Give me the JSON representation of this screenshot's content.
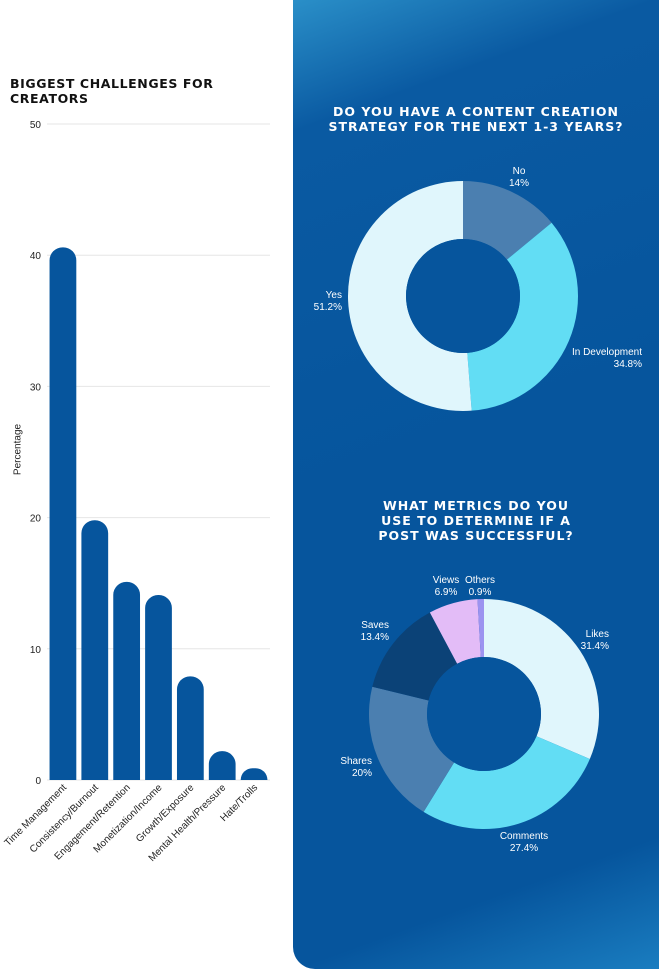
{
  "chart_data": [
    {
      "type": "bar",
      "title": "BIGGEST CHALLENGES FOR CREATORS",
      "xlabel": "",
      "ylabel": "Percentage",
      "ylim": [
        0,
        50
      ],
      "yticks": [
        0,
        10,
        20,
        30,
        40,
        50
      ],
      "grid": true,
      "bar_color": "#06559d",
      "categories": [
        "Time Management",
        "Consistency/Burnout",
        "Engagement/Retention",
        "Monetization/Income",
        "Growth/Exposure",
        "Mental Health/Pressure",
        "Hate/Trolls"
      ],
      "values": [
        40.6,
        19.8,
        15.1,
        14.1,
        7.9,
        2.2,
        0.9
      ]
    },
    {
      "type": "pie",
      "title": "DO YOU HAVE A CONTENT CREATION\nSTRATEGY FOR THE NEXT 1-3 YEARS?",
      "slices": [
        {
          "label": "No",
          "value_label": "14%",
          "value": 14,
          "color": "#4b7fb0"
        },
        {
          "label": "In Development",
          "value_label": "34.8%",
          "value": 34.8,
          "color": "#62ddf4"
        },
        {
          "label": "Yes",
          "value_label": "51.2%",
          "value": 51.2,
          "color": "#e0f6fc"
        }
      ]
    },
    {
      "type": "pie",
      "title": "WHAT METRICS DO YOU\nUSE TO DETERMINE IF A\nPOST WAS SUCCESSFUL?",
      "slices": [
        {
          "label": "Likes",
          "value_label": "31.4%",
          "value": 31.4,
          "color": "#e0f6fc"
        },
        {
          "label": "Comments",
          "value_label": "27.4%",
          "value": 27.4,
          "color": "#62ddf4"
        },
        {
          "label": "Shares",
          "value_label": "20%",
          "value": 20,
          "color": "#4b7fb0"
        },
        {
          "label": "Saves",
          "value_label": "13.4%",
          "value": 13.4,
          "color": "#0b4277"
        },
        {
          "label": "Views",
          "value_label": "6.9%",
          "value": 6.9,
          "color": "#e3bcf7"
        },
        {
          "label": "Others",
          "value_label": "0.9%",
          "value": 0.9,
          "color": "#9c93f0"
        }
      ]
    }
  ]
}
